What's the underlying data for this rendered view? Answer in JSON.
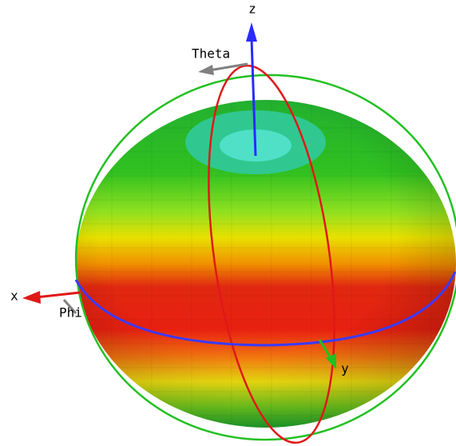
{
  "axes": {
    "z": "z",
    "x": "x",
    "y": "y"
  },
  "angles": {
    "theta": "Theta",
    "phi": "Phi"
  }
}
